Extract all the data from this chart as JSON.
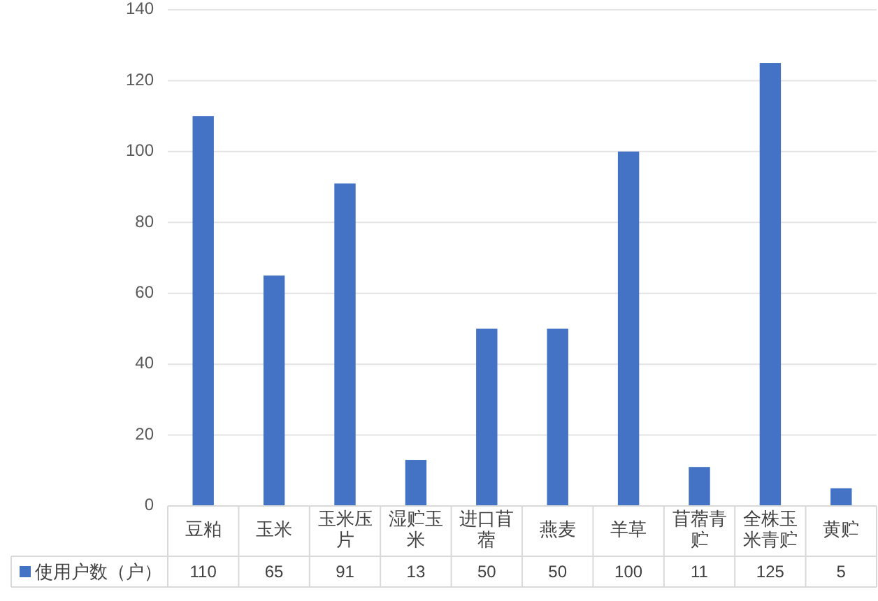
{
  "chart_data": {
    "type": "bar",
    "categories": [
      "豆粕",
      "玉米",
      "玉米压片",
      "湿贮玉米",
      "进口苜蓿",
      "燕麦",
      "羊草",
      "苜蓿青贮",
      "全株玉米青贮",
      "黄贮"
    ],
    "series": [
      {
        "name": "使用户数（户）",
        "color": "#4472c4",
        "values": [
          110,
          65,
          91,
          13,
          50,
          50,
          100,
          11,
          125,
          5
        ]
      }
    ],
    "ylim": [
      0,
      140
    ],
    "yticks": [
      0,
      20,
      40,
      60,
      80,
      100,
      120,
      140
    ],
    "grid": "y",
    "data_labels": true,
    "legend": "bottom"
  }
}
